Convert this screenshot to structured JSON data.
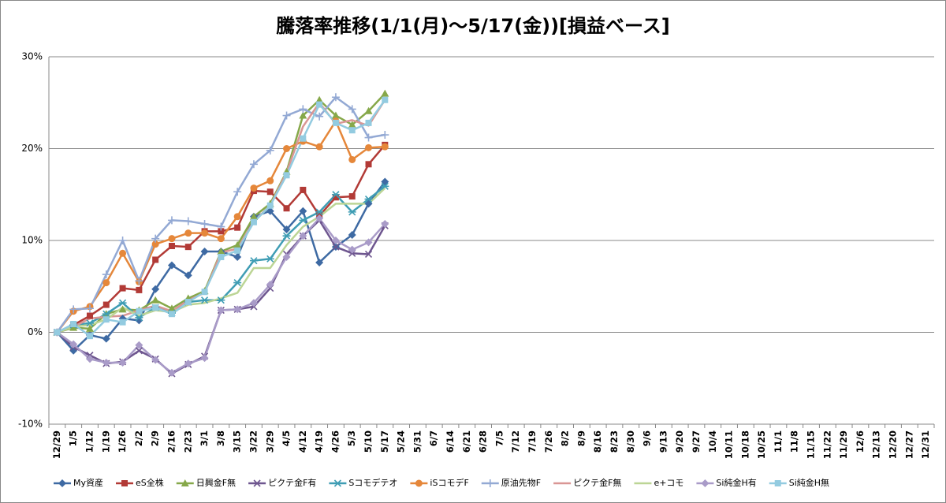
{
  "chart_data": {
    "type": "line",
    "title": "騰落率推移(1/1(月)～5/17(金))[損益ベース]",
    "categories": [
      "12/29",
      "1/5",
      "1/12",
      "1/19",
      "1/26",
      "2/2",
      "2/9",
      "2/16",
      "2/23",
      "3/1",
      "3/8",
      "3/15",
      "3/22",
      "3/29",
      "4/5",
      "4/12",
      "4/19",
      "4/26",
      "5/3",
      "5/10",
      "5/17",
      "5/24",
      "5/31",
      "6/7",
      "6/14",
      "6/21",
      "6/28",
      "7/5",
      "7/12",
      "7/19",
      "7/26",
      "8/2",
      "8/9",
      "8/16",
      "8/23",
      "8/30",
      "9/6",
      "9/13",
      "9/20",
      "9/27",
      "10/4",
      "10/11",
      "10/18",
      "10/25",
      "11/1",
      "11/8",
      "11/15",
      "11/22",
      "11/29",
      "12/6",
      "12/13",
      "12/20",
      "12/27",
      "12/31"
    ],
    "ylim": [
      -10,
      30
    ],
    "yticks": [
      {
        "value": -10,
        "label": "-10%"
      },
      {
        "value": 0,
        "label": "0%"
      },
      {
        "value": 10,
        "label": "10%"
      },
      {
        "value": 20,
        "label": "20%"
      },
      {
        "value": 30,
        "label": "30%"
      }
    ],
    "grid": true,
    "legend": "bottom",
    "series": [
      {
        "name": "My資産",
        "color": "#3e6aa3",
        "marker": "diamond",
        "values": [
          0,
          -2,
          -0.3,
          -0.7,
          1.5,
          1.3,
          4.7,
          7.3,
          6.2,
          8.8,
          8.8,
          8.2,
          12.6,
          13.2,
          11.2,
          13.2,
          7.6,
          9.3,
          10.6,
          14,
          16.4,
          null,
          null,
          null,
          null,
          null,
          null,
          null,
          null,
          null,
          null,
          null,
          null,
          null,
          null,
          null,
          null,
          null,
          null,
          null,
          null,
          null,
          null,
          null,
          null,
          null,
          null,
          null,
          null,
          null,
          null,
          null,
          null,
          null
        ]
      },
      {
        "name": "eS全株",
        "color": "#b23a36",
        "marker": "square",
        "values": [
          0,
          0.8,
          1.8,
          3,
          4.8,
          4.6,
          7.9,
          9.4,
          9.3,
          11,
          11,
          11.4,
          15.4,
          15.3,
          13.5,
          15.5,
          12.7,
          14.7,
          14.8,
          18.3,
          20.4,
          null,
          null,
          null,
          null,
          null,
          null,
          null,
          null,
          null,
          null,
          null,
          null,
          null,
          null,
          null,
          null,
          null,
          null,
          null,
          null,
          null,
          null,
          null,
          null,
          null,
          null,
          null,
          null,
          null,
          null,
          null,
          null,
          null
        ]
      },
      {
        "name": "日興金F無",
        "color": "#86a84a",
        "marker": "triangle",
        "values": [
          0,
          0.5,
          0.4,
          2,
          2.5,
          2.4,
          3.5,
          2.6,
          3.7,
          4.5,
          8.8,
          9.5,
          12.6,
          14,
          17.5,
          23.6,
          25.3,
          23.6,
          22.6,
          24.1,
          26,
          null,
          null,
          null,
          null,
          null,
          null,
          null,
          null,
          null,
          null,
          null,
          null,
          null,
          null,
          null,
          null,
          null,
          null,
          null,
          null,
          null,
          null,
          null,
          null,
          null,
          null,
          null,
          null,
          null,
          null,
          null,
          null,
          null
        ]
      },
      {
        "name": "ピクテ金F有",
        "color": "#6e568f",
        "marker": "x",
        "values": [
          0,
          -1.6,
          -2.5,
          -3.4,
          -3.2,
          -2,
          -2.9,
          -4.5,
          -3.5,
          -2.6,
          2.4,
          2.5,
          2.8,
          4.8,
          8.5,
          10.5,
          12.2,
          9.3,
          8.6,
          8.5,
          11.6,
          null,
          null,
          null,
          null,
          null,
          null,
          null,
          null,
          null,
          null,
          null,
          null,
          null,
          null,
          null,
          null,
          null,
          null,
          null,
          null,
          null,
          null,
          null,
          null,
          null,
          null,
          null,
          null,
          null,
          null,
          null,
          null,
          null
        ]
      },
      {
        "name": "Sコモデテオ",
        "color": "#3f9db4",
        "marker": "asterisk",
        "values": [
          0,
          0.8,
          1,
          2,
          3.2,
          1.6,
          2.7,
          2.1,
          3.3,
          3.5,
          3.5,
          5.4,
          7.8,
          8,
          10.5,
          12.2,
          13.1,
          15,
          13.1,
          14.5,
          15.9,
          null,
          null,
          null,
          null,
          null,
          null,
          null,
          null,
          null,
          null,
          null,
          null,
          null,
          null,
          null,
          null,
          null,
          null,
          null,
          null,
          null,
          null,
          null,
          null,
          null,
          null,
          null,
          null,
          null,
          null,
          null,
          null,
          null
        ]
      },
      {
        "name": "iSコモデF",
        "color": "#e5873a",
        "marker": "circle",
        "values": [
          0,
          2.3,
          2.8,
          5.4,
          8.6,
          5.5,
          9.6,
          10.2,
          10.8,
          10.8,
          10.2,
          12.6,
          15.7,
          16.5,
          20,
          20.8,
          20.2,
          23,
          18.8,
          20.1,
          20.2,
          null,
          null,
          null,
          null,
          null,
          null,
          null,
          null,
          null,
          null,
          null,
          null,
          null,
          null,
          null,
          null,
          null,
          null,
          null,
          null,
          null,
          null,
          null,
          null,
          null,
          null,
          null,
          null,
          null,
          null,
          null,
          null,
          null
        ]
      },
      {
        "name": "原油先物F",
        "color": "#93a9d4",
        "marker": "plus",
        "values": [
          0,
          2.5,
          2.6,
          6.3,
          10,
          5.6,
          10.2,
          12.2,
          12.1,
          11.8,
          11.5,
          15.3,
          18.3,
          19.8,
          23.6,
          24.3,
          23.5,
          25.6,
          24.3,
          21.2,
          21.5,
          null,
          null,
          null,
          null,
          null,
          null,
          null,
          null,
          null,
          null,
          null,
          null,
          null,
          null,
          null,
          null,
          null,
          null,
          null,
          null,
          null,
          null,
          null,
          null,
          null,
          null,
          null,
          null,
          null,
          null,
          null,
          null,
          null
        ]
      },
      {
        "name": "ピクテ金F無",
        "color": "#d99694",
        "marker": "none",
        "values": [
          0,
          0.6,
          1.5,
          1.7,
          1.8,
          2.4,
          2.9,
          2.3,
          3.5,
          4.3,
          8.7,
          9.1,
          12.1,
          13.8,
          17.4,
          22.4,
          25,
          22.7,
          23.1,
          22.5,
          25.3,
          null,
          null,
          null,
          null,
          null,
          null,
          null,
          null,
          null,
          null,
          null,
          null,
          null,
          null,
          null,
          null,
          null,
          null,
          null,
          null,
          null,
          null,
          null,
          null,
          null,
          null,
          null,
          null,
          null,
          null,
          null,
          null,
          null
        ]
      },
      {
        "name": "e+コモ",
        "color": "#bcd595",
        "marker": "none",
        "values": [
          0,
          0.6,
          0.8,
          1.4,
          2.7,
          1.8,
          2.4,
          2.2,
          3,
          3.2,
          3.7,
          4.3,
          7,
          7,
          9.5,
          11.5,
          12.6,
          14,
          14,
          14,
          15.7,
          null,
          null,
          null,
          null,
          null,
          null,
          null,
          null,
          null,
          null,
          null,
          null,
          null,
          null,
          null,
          null,
          null,
          null,
          null,
          null,
          null,
          null,
          null,
          null,
          null,
          null,
          null,
          null,
          null,
          null,
          null,
          null,
          null
        ]
      },
      {
        "name": "Si純金H有",
        "color": "#a99bc8",
        "marker": "diamond",
        "values": [
          0,
          -1.3,
          -2.9,
          -3.3,
          -3.3,
          -1.4,
          -3,
          -4.4,
          -3.4,
          -2.8,
          2.4,
          2.5,
          3.2,
          5.2,
          8.2,
          10.5,
          12.4,
          10,
          9,
          9.8,
          11.8,
          null,
          null,
          null,
          null,
          null,
          null,
          null,
          null,
          null,
          null,
          null,
          null,
          null,
          null,
          null,
          null,
          null,
          null,
          null,
          null,
          null,
          null,
          null,
          null,
          null,
          null,
          null,
          null,
          null,
          null,
          null,
          null,
          null
        ]
      },
      {
        "name": "Si純金H無",
        "color": "#93cbe0",
        "marker": "square",
        "values": [
          0,
          0.9,
          -0.4,
          1.4,
          1.1,
          2.3,
          2.7,
          2,
          3.3,
          4.4,
          8.2,
          8.9,
          12,
          13.8,
          17.1,
          21.1,
          24.8,
          22.8,
          22,
          22.8,
          25.3,
          null,
          null,
          null,
          null,
          null,
          null,
          null,
          null,
          null,
          null,
          null,
          null,
          null,
          null,
          null,
          null,
          null,
          null,
          null,
          null,
          null,
          null,
          null,
          null,
          null,
          null,
          null,
          null,
          null,
          null,
          null,
          null,
          null
        ]
      }
    ]
  }
}
